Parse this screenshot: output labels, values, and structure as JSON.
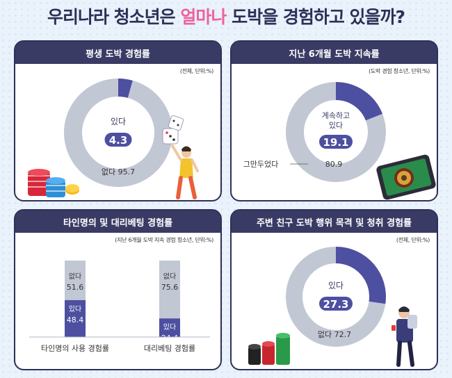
{
  "header": {
    "title_pre": "우리나라 청소년은 ",
    "title_highlight": "얼마나",
    "title_post": " 도박을 경험하고 있을까?"
  },
  "colors": {
    "navy": "#3a3b64",
    "purple": "#4d4fa0",
    "gray": "#c2c7d4",
    "pink": "#f0619a",
    "background": "#eaf2fb"
  },
  "chart_data": [
    {
      "type": "pie",
      "title": "평생 도박 경험률",
      "note": "(전체, 단위:%)",
      "slices": [
        {
          "label": "있다",
          "value": 4.3,
          "color": "#4d4fa0"
        },
        {
          "label": "없다",
          "value": 95.7,
          "color": "#c2c7d4"
        }
      ]
    },
    {
      "type": "pie",
      "title": "지난 6개월 도박 지속률",
      "note": "(도박 경험 청소년, 단위:%)",
      "slices": [
        {
          "label": "계속하고 있다",
          "value": 19.1,
          "color": "#4d4fa0"
        },
        {
          "label": "그만두었다",
          "value": 80.9,
          "color": "#c2c7d4"
        }
      ]
    },
    {
      "type": "bar",
      "title": "타인명의 및 대리베팅 경험률",
      "note": "(지난 6개월 도박 지속 경험 청소년, 단위:%)",
      "categories": [
        "타인명의 사용 경험률",
        "대리베팅 경험률"
      ],
      "stacked": true,
      "ylim": [
        0,
        100
      ],
      "series": [
        {
          "name": "있다",
          "values": [
            48.4,
            24.4
          ],
          "color": "#4d4fa0"
        },
        {
          "name": "없다",
          "values": [
            51.6,
            75.6
          ],
          "color": "#c2c7d4"
        }
      ]
    },
    {
      "type": "pie",
      "title": "주변 친구 도박 행위 목격 및 청취 경험률",
      "note": "(전체, 단위:%)",
      "slices": [
        {
          "label": "있다",
          "value": 27.3,
          "color": "#4d4fa0"
        },
        {
          "label": "없다",
          "value": 72.7,
          "color": "#c2c7d4"
        }
      ]
    }
  ]
}
